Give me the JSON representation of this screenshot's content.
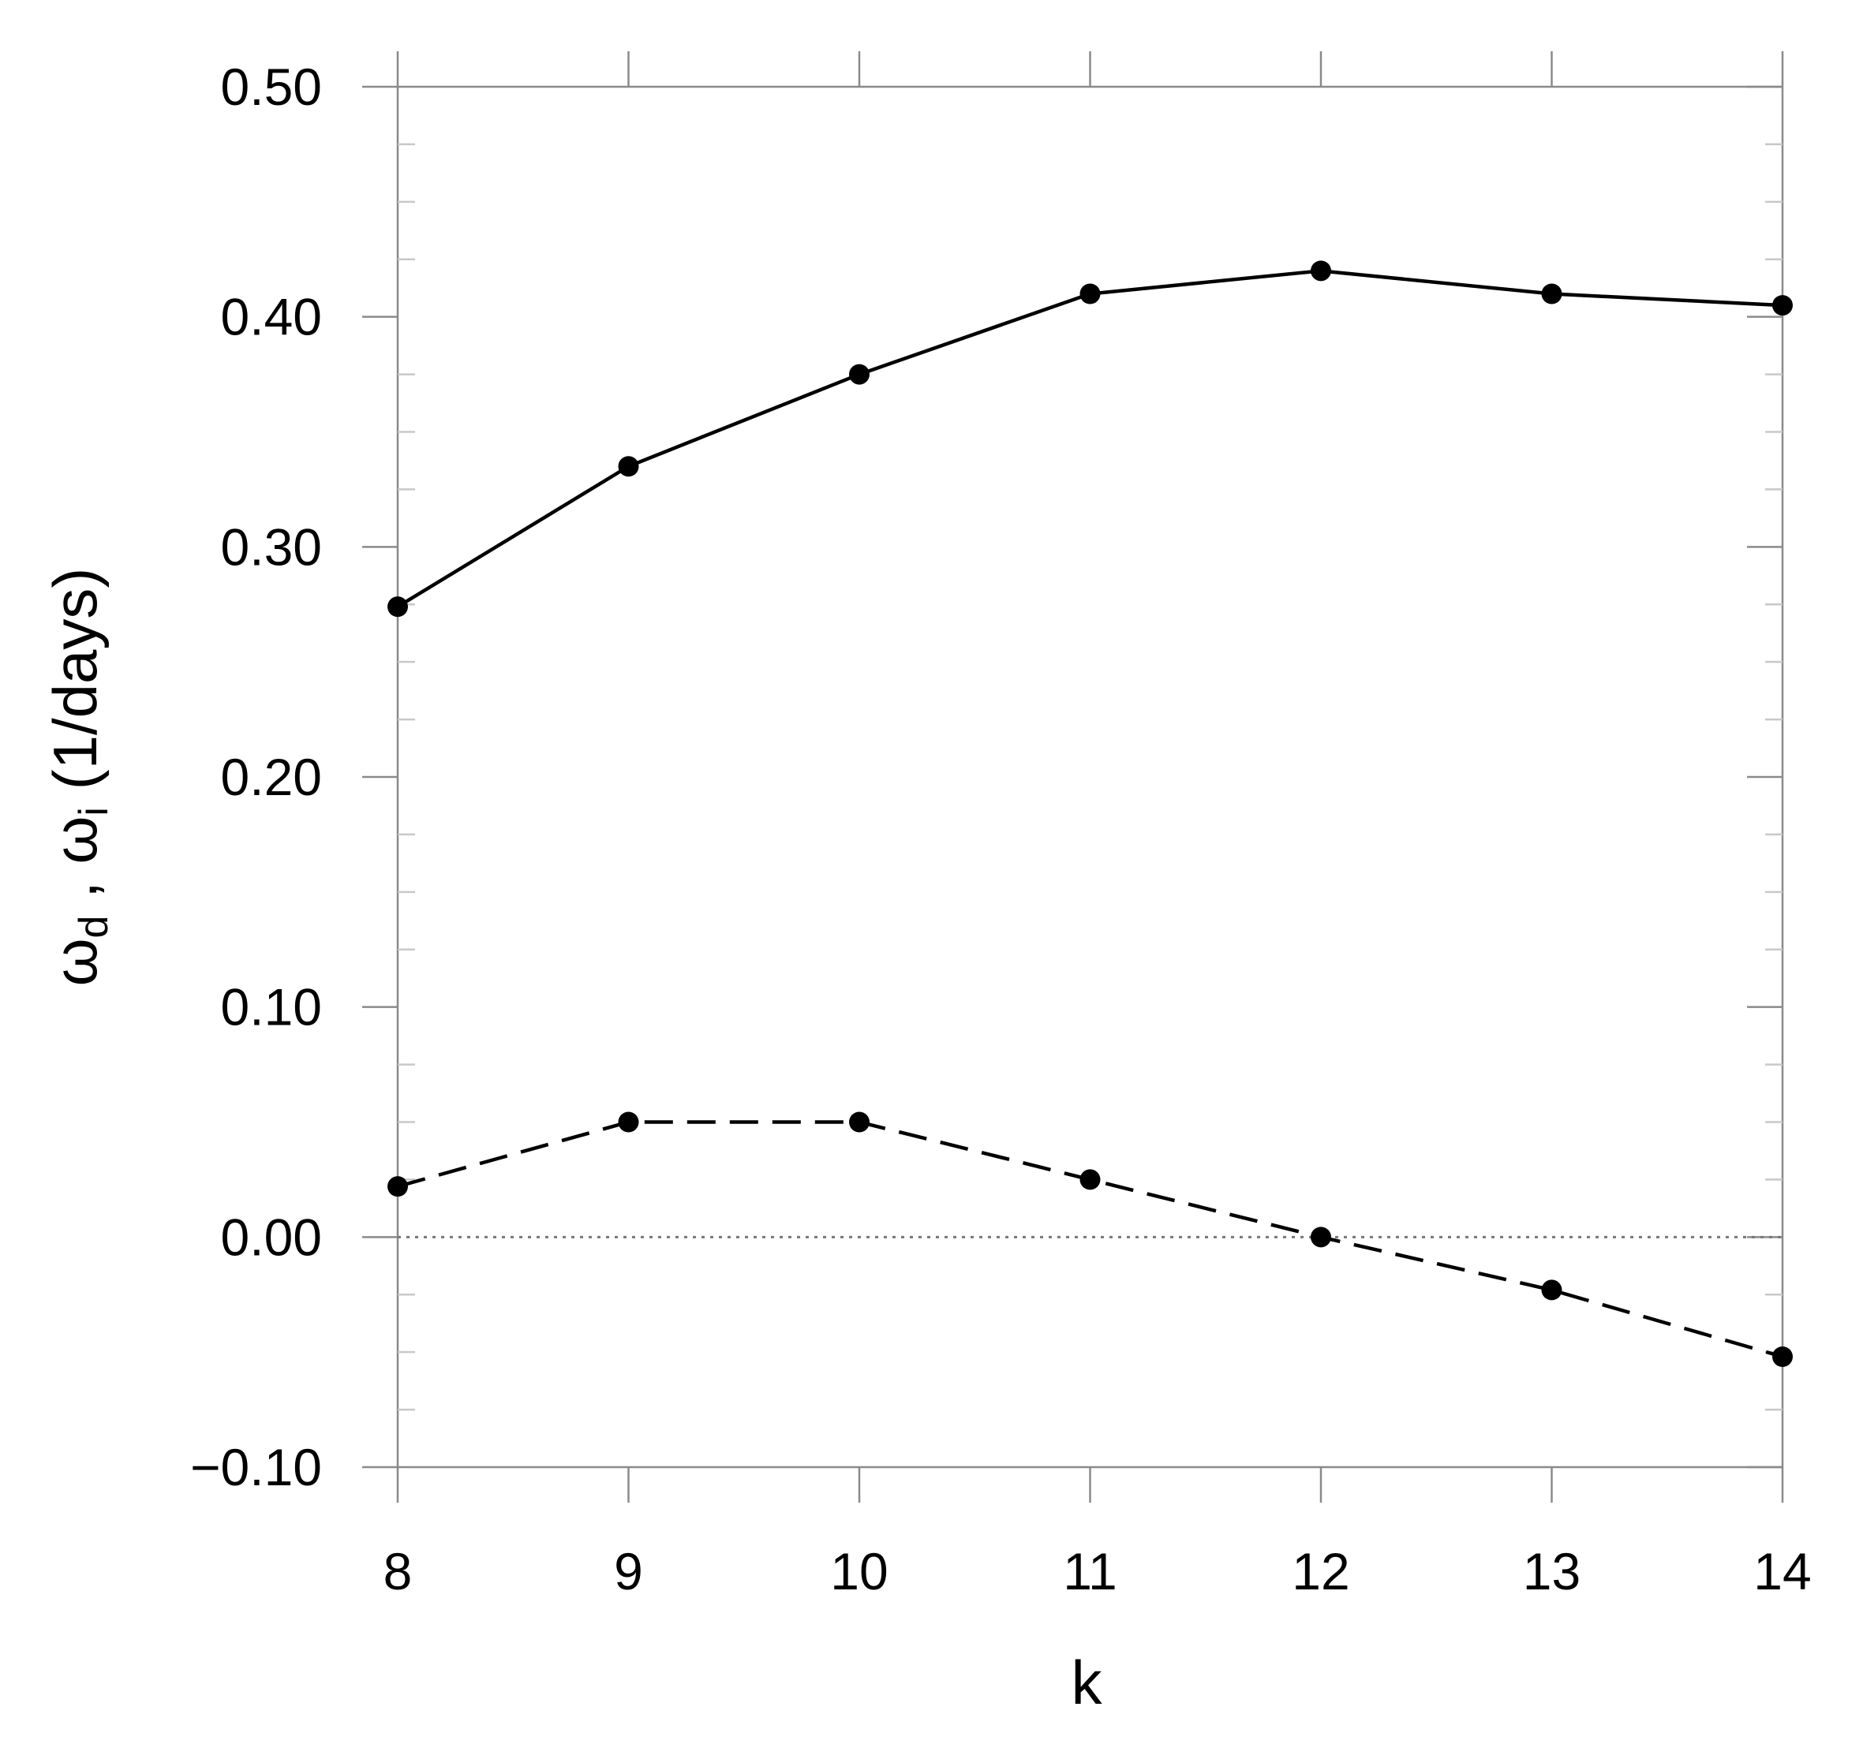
{
  "chart_data": {
    "type": "line",
    "xlabel": "k",
    "ylabel": {
      "symbol": "ω",
      "sub1": "d",
      "separator": " , ",
      "sub2": "i",
      "unit": " (1/days)"
    },
    "x": [
      8,
      9,
      10,
      11,
      12,
      13,
      14
    ],
    "xlim": [
      8,
      14
    ],
    "ylim": [
      -0.1,
      0.5
    ],
    "x_ticks": [
      "8",
      "9",
      "10",
      "11",
      "12",
      "13",
      "14"
    ],
    "y_ticks": [
      {
        "value": 0.5,
        "label": "0.50"
      },
      {
        "value": 0.4,
        "label": "0.40"
      },
      {
        "value": 0.3,
        "label": "0.30"
      },
      {
        "value": 0.2,
        "label": "0.20"
      },
      {
        "value": 0.1,
        "label": "0.10"
      },
      {
        "value": 0.0,
        "label": "0.00"
      },
      {
        "value": -0.1,
        "label": "−0.10"
      }
    ],
    "y_minor_step": 0.025,
    "reference_line": {
      "y": 0.0,
      "style": "dotted",
      "color": "#777777"
    },
    "series": [
      {
        "style": "solid",
        "marker": "circle",
        "color": "#000000",
        "values": [
          0.274,
          0.335,
          0.375,
          0.41,
          0.42,
          0.41,
          0.405
        ]
      },
      {
        "style": "dashed",
        "marker": "circle",
        "color": "#000000",
        "values": [
          0.022,
          0.05,
          0.05,
          0.025,
          0.0,
          -0.023,
          -0.052
        ]
      }
    ],
    "grid": false,
    "legend": "none"
  }
}
